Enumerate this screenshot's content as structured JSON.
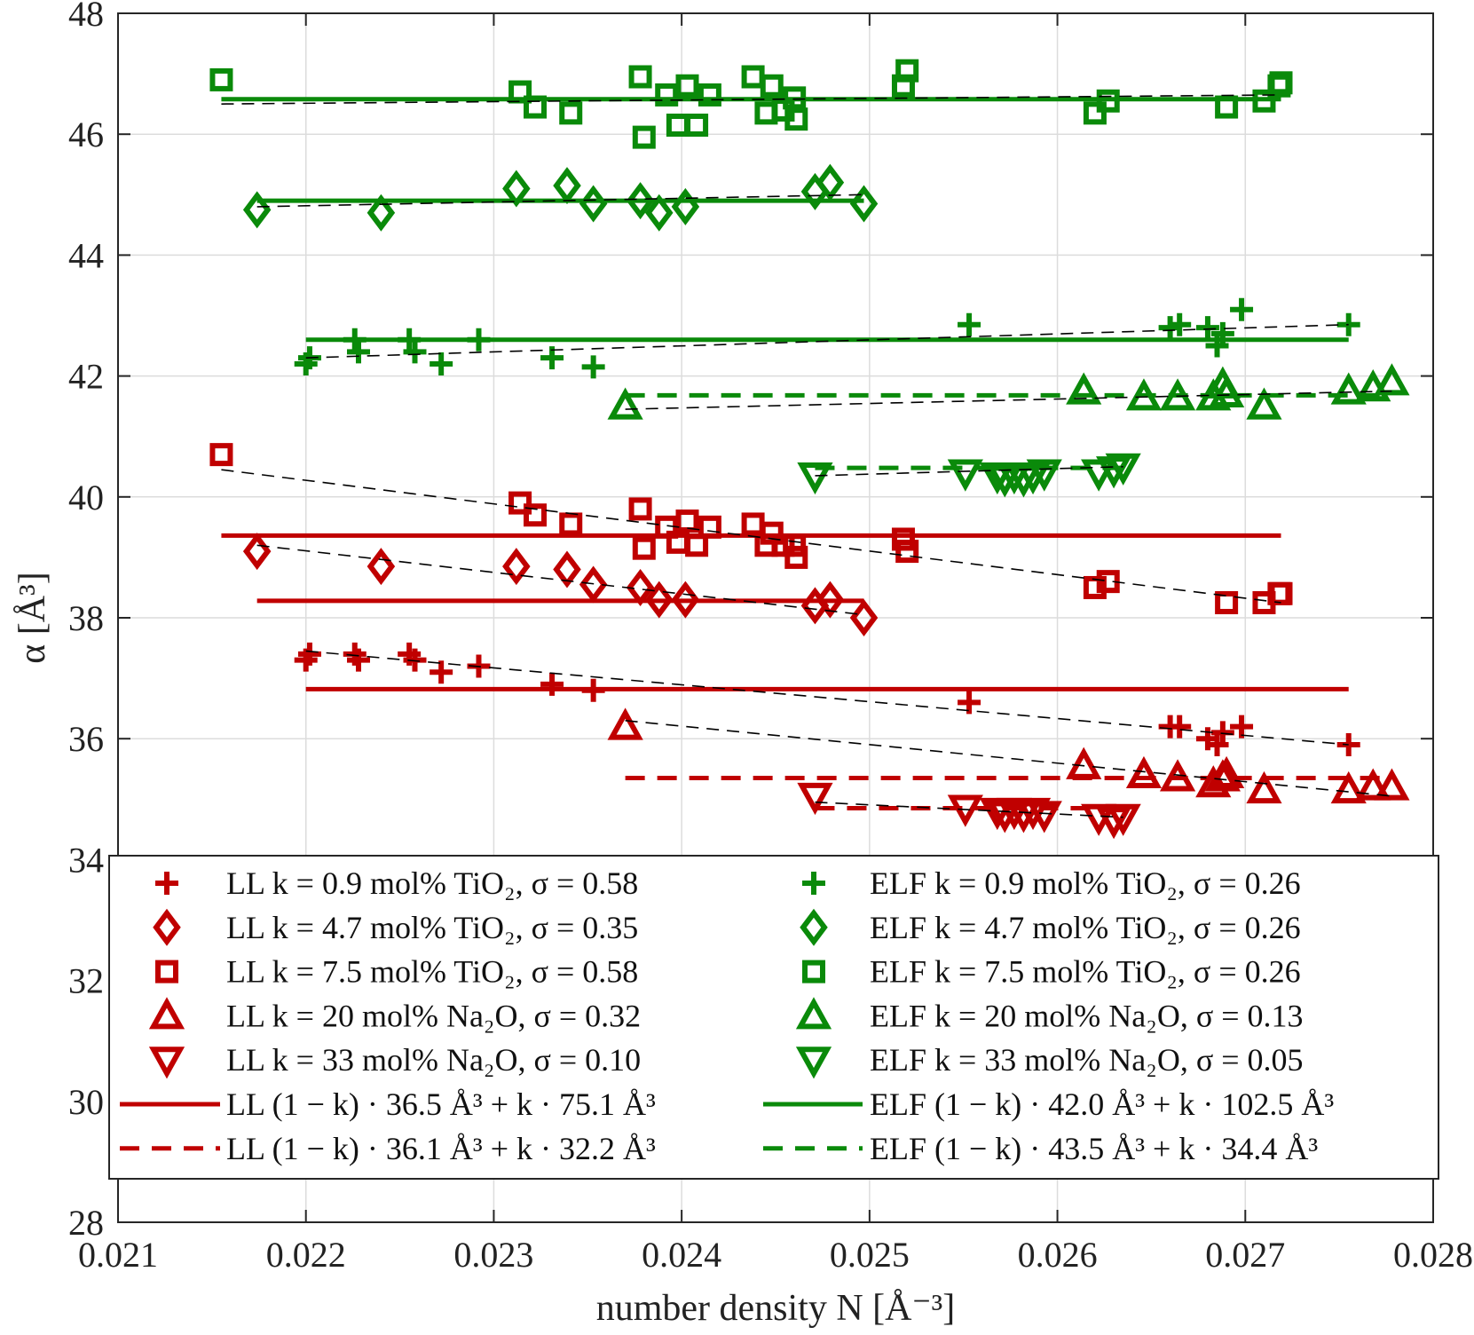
{
  "chart_data": {
    "type": "scatter",
    "xlabel": "number density N [Å⁻³]",
    "ylabel": "α [Å³]",
    "xlim": [
      0.021,
      0.028
    ],
    "ylim": [
      28,
      48
    ],
    "grid": true,
    "legend_position": "bottom-center",
    "x_ticks": [
      "0.021",
      "0.022",
      "0.023",
      "0.024",
      "0.025",
      "0.026",
      "0.027",
      "0.028"
    ],
    "y_ticks": [
      "28",
      "30",
      "32",
      "34",
      "36",
      "38",
      "40",
      "42",
      "44",
      "46",
      "48"
    ],
    "colors": {
      "LL": "#c00000",
      "ELF": "#0a8a0a",
      "fit": "#000000"
    },
    "series": [
      {
        "name": "LL k = 0.9 mol% TiO₂, σ = 0.58",
        "legend_label": "LL k = 0.9 mol% TiO₂, σ = 0.58",
        "model": "LL",
        "marker": "plus",
        "x": [
          0.022,
          0.02202,
          0.02226,
          0.02228,
          0.02255,
          0.02258,
          0.02272,
          0.02292,
          0.02331,
          0.02353,
          0.02553,
          0.0266,
          0.02665,
          0.0268,
          0.02685,
          0.02688,
          0.02698,
          0.02755
        ],
        "y": [
          37.3,
          37.4,
          37.4,
          37.3,
          37.4,
          37.3,
          37.1,
          37.2,
          36.9,
          36.8,
          36.6,
          36.2,
          36.2,
          36.0,
          35.9,
          36.1,
          36.2,
          35.9
        ],
        "fit": {
          "x": [
            0.022,
            0.02755
          ],
          "y": [
            37.45,
            35.9
          ]
        }
      },
      {
        "name": "LL k = 4.7 mol% TiO₂, σ = 0.35",
        "legend_label": "LL k = 4.7 mol% TiO₂, σ = 0.35",
        "model": "LL",
        "marker": "diamond",
        "x": [
          0.02174,
          0.0224,
          0.02312,
          0.02339,
          0.02353,
          0.02378,
          0.02388,
          0.02402,
          0.02471,
          0.02479,
          0.02497
        ],
        "y": [
          39.1,
          38.85,
          38.85,
          38.8,
          38.55,
          38.5,
          38.3,
          38.3,
          38.2,
          38.3,
          38.0
        ],
        "fit": {
          "x": [
            0.02174,
            0.02497
          ],
          "y": [
            39.2,
            38.05
          ]
        }
      },
      {
        "name": "LL k = 7.5 mol% TiO₂, σ = 0.58",
        "legend_label": "LL k = 7.5 mol% TiO₂, σ = 0.58",
        "model": "LL",
        "marker": "square",
        "x": [
          0.02155,
          0.02314,
          0.02322,
          0.02341,
          0.02378,
          0.0238,
          0.02392,
          0.02398,
          0.02403,
          0.02408,
          0.02415,
          0.02438,
          0.02445,
          0.02448,
          0.02454,
          0.0246,
          0.02461,
          0.02518,
          0.0252,
          0.0262,
          0.02627,
          0.0269,
          0.0271,
          0.02718,
          0.02719
        ],
        "y": [
          40.7,
          39.9,
          39.7,
          39.55,
          39.8,
          39.15,
          39.5,
          39.25,
          39.6,
          39.2,
          39.5,
          39.55,
          39.2,
          39.4,
          39.2,
          39.2,
          39.0,
          39.3,
          39.1,
          38.5,
          38.6,
          38.25,
          38.25,
          38.4,
          38.4
        ],
        "fit": {
          "x": [
            0.02155,
            0.02719
          ],
          "y": [
            40.45,
            38.25
          ]
        }
      },
      {
        "name": "LL k = 20 mol% Na₂O, σ = 0.32",
        "legend_label": "LL k = 20 mol% Na₂O, σ = 0.32",
        "model": "LL",
        "marker": "triangle-up",
        "x": [
          0.0237,
          0.02614,
          0.02646,
          0.02664,
          0.02683,
          0.02688,
          0.0269,
          0.0271,
          0.02755,
          0.02768,
          0.02778
        ],
        "y": [
          36.2,
          35.55,
          35.4,
          35.35,
          35.25,
          35.35,
          35.4,
          35.15,
          35.15,
          35.2,
          35.2
        ],
        "fit": {
          "x": [
            0.0237,
            0.02778
          ],
          "y": [
            36.3,
            35.05
          ]
        }
      },
      {
        "name": "LL k = 33 mol% Na₂O, σ = 0.10",
        "legend_label": "LL k = 33 mol% Na₂O, σ = 0.10",
        "model": "LL",
        "marker": "triangle-down",
        "x": [
          0.02471,
          0.02551,
          0.02568,
          0.02572,
          0.02577,
          0.02582,
          0.02587,
          0.02593,
          0.02622,
          0.0263,
          0.02635
        ],
        "y": [
          35.05,
          34.85,
          34.8,
          34.75,
          34.8,
          34.75,
          34.8,
          34.75,
          34.7,
          34.65,
          34.7
        ],
        "fit": {
          "x": [
            0.02471,
            0.02635
          ],
          "y": [
            34.95,
            34.7
          ]
        }
      },
      {
        "name": "ELF k = 0.9 mol% TiO₂, σ = 0.26",
        "legend_label": "ELF k = 0.9 mol% TiO₂, σ = 0.26",
        "model": "ELF",
        "marker": "plus",
        "x": [
          0.022,
          0.02202,
          0.02226,
          0.02228,
          0.02255,
          0.02258,
          0.02272,
          0.02292,
          0.02331,
          0.02353,
          0.02553,
          0.0266,
          0.02665,
          0.0268,
          0.02685,
          0.02688,
          0.02698,
          0.02755
        ],
        "y": [
          42.2,
          42.3,
          42.6,
          42.4,
          42.6,
          42.4,
          42.2,
          42.6,
          42.3,
          42.15,
          42.85,
          42.8,
          42.85,
          42.8,
          42.5,
          42.7,
          43.1,
          42.85
        ],
        "fit": {
          "x": [
            0.022,
            0.02755
          ],
          "y": [
            42.3,
            42.85
          ]
        }
      },
      {
        "name": "ELF k = 4.7 mol% TiO₂, σ = 0.26",
        "legend_label": "ELF k = 4.7 mol% TiO₂, σ = 0.26",
        "model": "ELF",
        "marker": "diamond",
        "x": [
          0.02174,
          0.0224,
          0.02312,
          0.02339,
          0.02353,
          0.02378,
          0.02388,
          0.02402,
          0.02471,
          0.02479,
          0.02497
        ],
        "y": [
          44.75,
          44.7,
          45.1,
          45.15,
          44.85,
          44.9,
          44.7,
          44.8,
          45.05,
          45.2,
          44.85
        ],
        "fit": {
          "x": [
            0.02174,
            0.02497
          ],
          "y": [
            44.8,
            45.0
          ]
        }
      },
      {
        "name": "ELF k = 7.5 mol% TiO₂, σ = 0.26",
        "legend_label": "ELF k = 7.5 mol% TiO₂, σ = 0.26",
        "model": "ELF",
        "marker": "square",
        "x": [
          0.02155,
          0.02314,
          0.02322,
          0.02341,
          0.02378,
          0.0238,
          0.02392,
          0.02398,
          0.02403,
          0.02408,
          0.02415,
          0.02438,
          0.02445,
          0.02448,
          0.02454,
          0.0246,
          0.02461,
          0.02518,
          0.0252,
          0.0262,
          0.02627,
          0.0269,
          0.0271,
          0.02718,
          0.02719
        ],
        "y": [
          46.9,
          46.7,
          46.45,
          46.35,
          46.95,
          45.95,
          46.65,
          46.15,
          46.8,
          46.15,
          46.65,
          46.95,
          46.35,
          46.8,
          46.4,
          46.6,
          46.25,
          46.8,
          47.05,
          46.35,
          46.55,
          46.45,
          46.55,
          46.8,
          46.85
        ],
        "fit": {
          "x": [
            0.02155,
            0.02719
          ],
          "y": [
            46.5,
            46.65
          ]
        }
      },
      {
        "name": "ELF k = 20 mol% Na₂O, σ = 0.13",
        "legend_label": "ELF k = 20 mol% Na₂O, σ = 0.13",
        "model": "ELF",
        "marker": "triangle-up",
        "x": [
          0.0237,
          0.02614,
          0.02646,
          0.02664,
          0.02683,
          0.02688,
          0.0269,
          0.0271,
          0.02755,
          0.02768,
          0.02778
        ],
        "y": [
          41.5,
          41.75,
          41.65,
          41.65,
          41.65,
          41.85,
          41.7,
          41.5,
          41.75,
          41.8,
          41.9
        ],
        "fit": {
          "x": [
            0.0237,
            0.02778
          ],
          "y": [
            41.45,
            41.75
          ]
        }
      },
      {
        "name": "ELF k = 33 mol% Na₂O, σ = 0.05",
        "legend_label": "ELF k = 33 mol% Na₂O, σ = 0.05",
        "model": "ELF",
        "marker": "triangle-down",
        "x": [
          0.02471,
          0.02551,
          0.02568,
          0.02572,
          0.02577,
          0.02582,
          0.02587,
          0.02593,
          0.02622,
          0.0263,
          0.02635
        ],
        "y": [
          40.35,
          40.4,
          40.35,
          40.3,
          40.35,
          40.3,
          40.35,
          40.4,
          40.4,
          40.45,
          40.5
        ],
        "fit": {
          "x": [
            0.02471,
            0.02635
          ],
          "y": [
            40.35,
            40.5
          ]
        }
      }
    ],
    "models": [
      {
        "name": "LL (1 − k) · 36.5 Å³ + k · 75.1 Å³",
        "legend_label": "LL (1 − k) · 36.5 Å³ + k · 75.1 Å³",
        "model": "LL",
        "style": "solid",
        "segments": [
          {
            "x": [
              0.022,
              0.02755
            ],
            "y": 36.82
          },
          {
            "x": [
              0.02174,
              0.02497
            ],
            "y": 38.28
          },
          {
            "x": [
              0.02155,
              0.02719
            ],
            "y": 39.36
          }
        ]
      },
      {
        "name": "LL (1 − k) · 36.1 Å³ + k · 32.2 Å³",
        "legend_label": "LL (1 − k) · 36.1 Å³ + k · 32.2 Å³",
        "model": "LL",
        "style": "dashed",
        "segments": [
          {
            "x": [
              0.0237,
              0.02778
            ],
            "y": 35.35
          },
          {
            "x": [
              0.02471,
              0.02635
            ],
            "y": 34.85
          }
        ]
      },
      {
        "name": "ELF (1 − k) · 42.0 Å³ + k · 102.5 Å³",
        "legend_label": "ELF (1 − k) · 42.0 Å³ + k · 102.5 Å³",
        "model": "ELF",
        "style": "solid",
        "segments": [
          {
            "x": [
              0.022,
              0.02755
            ],
            "y": 42.6
          },
          {
            "x": [
              0.02174,
              0.02497
            ],
            "y": 44.9
          },
          {
            "x": [
              0.02155,
              0.02719
            ],
            "y": 46.58
          }
        ]
      },
      {
        "name": "ELF (1 − k) · 43.5 Å³ + k · 34.4 Å³",
        "legend_label": "ELF (1 − k) · 43.5 Å³ + k · 34.4 Å³",
        "model": "ELF",
        "style": "dashed",
        "segments": [
          {
            "x": [
              0.0237,
              0.02778
            ],
            "y": 41.68
          },
          {
            "x": [
              0.02471,
              0.02635
            ],
            "y": 40.48
          }
        ]
      }
    ]
  }
}
